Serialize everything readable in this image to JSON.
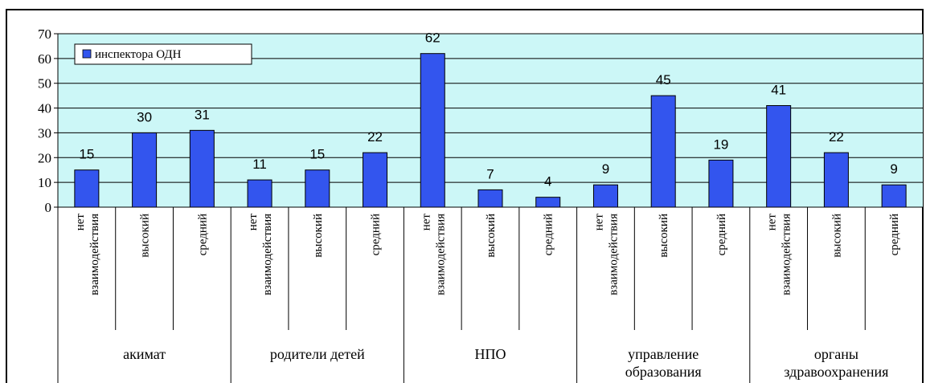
{
  "chart_data": {
    "type": "bar",
    "ylim": [
      0,
      70
    ],
    "yticks": [
      0,
      10,
      20,
      30,
      40,
      50,
      60,
      70
    ],
    "grid": true,
    "legend_position": "top-left",
    "series": [
      {
        "name": "инспектора ОДН",
        "color": "#3355ee",
        "values": [
          15,
          30,
          31,
          11,
          15,
          22,
          62,
          7,
          4,
          9,
          45,
          19,
          41,
          22,
          9
        ]
      }
    ],
    "categories": [
      [
        "нет",
        "взаимодействия"
      ],
      [
        "высокий"
      ],
      [
        "средний"
      ],
      [
        "нет",
        "взаимодействия"
      ],
      [
        "высокий"
      ],
      [
        "средний"
      ],
      [
        "нет",
        "взаимодействия"
      ],
      [
        "высокий"
      ],
      [
        "средний"
      ],
      [
        "нет",
        "взаимодействия"
      ],
      [
        "высокий"
      ],
      [
        "средний"
      ],
      [
        "нет",
        "взаимодействия"
      ],
      [
        "высокий"
      ],
      [
        "средний"
      ]
    ],
    "groups": [
      [
        "акимат"
      ],
      [
        "родители детей"
      ],
      [
        "НПО"
      ],
      [
        "управление",
        "образования"
      ],
      [
        "органы",
        "здравоохранения"
      ]
    ],
    "plot_background": "#ccf7f7"
  }
}
